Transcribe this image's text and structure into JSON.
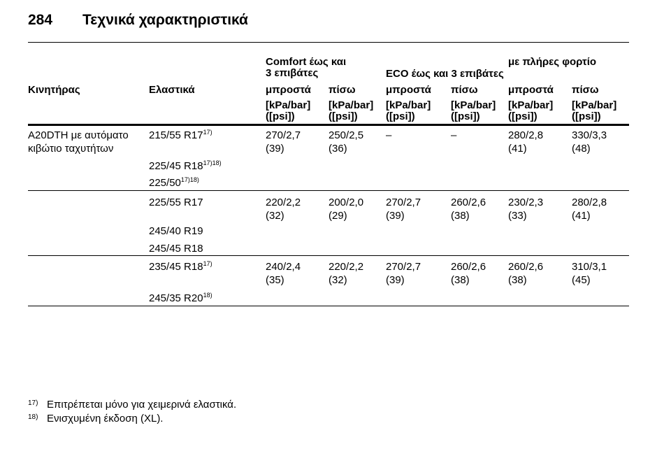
{
  "header": {
    "page": "284",
    "title": "Τεχνικά χαρακτηριστικά"
  },
  "table": {
    "group_headers": [
      {
        "lines": [
          "Comfort έως και",
          "3 επιβάτες"
        ]
      },
      {
        "lines": [
          "ECO έως και 3 επιβάτες"
        ]
      },
      {
        "lines": [
          "με πλήρες φορτίο"
        ]
      }
    ],
    "column_headers": [
      "Κινητήρας",
      "Ελαστικά",
      "μπροστά",
      "πίσω",
      "μπροστά",
      "πίσω",
      "μπροστά",
      "πίσω"
    ],
    "units": [
      [
        "[kPa/bar]",
        "([psi])"
      ],
      [
        "[kPa/bar]",
        "([psi])"
      ],
      [
        "[kPa/bar]",
        "([psi])"
      ],
      [
        "[kPa/bar]",
        "([psi])"
      ],
      [
        "[kPa/bar]",
        "([psi])"
      ],
      [
        "[kPa/bar]",
        "([psi])"
      ]
    ],
    "engine": [
      "A20DTH με αυτόματο",
      "κιβώτιο ταχυτήτων"
    ],
    "groups": [
      {
        "tyres": [
          {
            "size": "215/55 R17",
            "notes": "17)"
          },
          {
            "size": "225/45 R18",
            "notes": "17)18)"
          },
          {
            "size": "225/50",
            "notes": "17)18)"
          }
        ],
        "pressures": [
          [
            "270/2,7",
            "(39)"
          ],
          [
            "250/2,5",
            "(36)"
          ],
          [
            "–"
          ],
          [
            "–"
          ],
          [
            "280/2,8",
            "(41)"
          ],
          [
            "330/3,3",
            "(48)"
          ]
        ]
      },
      {
        "tyres": [
          {
            "size": "225/55 R17"
          },
          {
            "size": "245/40 R19"
          },
          {
            "size": "245/45 R18"
          }
        ],
        "pressures": [
          [
            "220/2,2",
            "(32)"
          ],
          [
            "200/2,0",
            "(29)"
          ],
          [
            "270/2,7",
            "(39)"
          ],
          [
            "260/2,6",
            "(38)"
          ],
          [
            "230/2,3",
            "(33)"
          ],
          [
            "280/2,8",
            "(41)"
          ]
        ]
      },
      {
        "tyres": [
          {
            "size": "235/45 R18",
            "notes": "17)"
          },
          {
            "size": "245/35 R20",
            "notes": "18)"
          }
        ],
        "pressures": [
          [
            "240/2,4",
            "(35)"
          ],
          [
            "220/2,2",
            "(32)"
          ],
          [
            "270/2,7",
            "(39)"
          ],
          [
            "260/2,6",
            "(38)"
          ],
          [
            "260/2,6",
            "(38)"
          ],
          [
            "310/3,1",
            "(45)"
          ]
        ]
      }
    ]
  },
  "footnotes": [
    {
      "mark": "17)",
      "text": "Επιτρέπεται μόνο για χειμερινά ελαστικά."
    },
    {
      "mark": "18)",
      "text": "Ενισχυμένη έκδοση (XL)."
    }
  ]
}
